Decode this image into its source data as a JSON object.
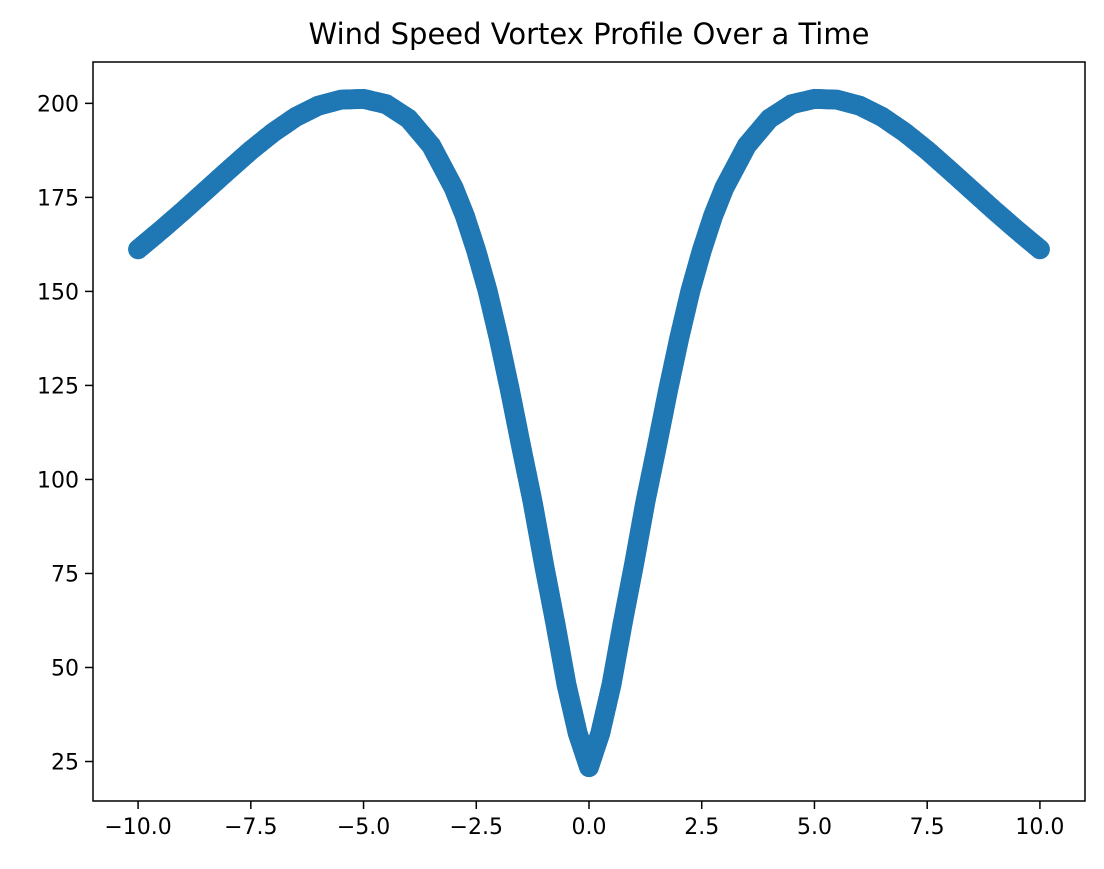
{
  "chart_data": {
    "type": "scatter",
    "title": "Wind Speed Vortex Profile Over a Time",
    "xlabel": "",
    "ylabel": "",
    "xlim": [
      -11.0,
      11.0
    ],
    "ylim": [
      14.5,
      211.0
    ],
    "x_ticks": [
      -10.0,
      -7.5,
      -5.0,
      -2.5,
      0.0,
      2.5,
      5.0,
      7.5,
      10.0
    ],
    "x_tick_labels": [
      "−10.0",
      "−7.5",
      "−5.0",
      "−2.5",
      "0.0",
      "2.5",
      "5.0",
      "7.5",
      "10.0"
    ],
    "y_ticks": [
      25,
      50,
      75,
      100,
      125,
      150,
      175,
      200
    ],
    "y_tick_labels": [
      "25",
      "50",
      "75",
      "100",
      "125",
      "150",
      "175",
      "200"
    ],
    "grid": false,
    "marker_color": "#1f77b4",
    "series": [
      {
        "x": [
          -10.0,
          -9.5,
          -9.0,
          -8.5,
          -8.0,
          -7.5,
          -7.0,
          -6.5,
          -6.0,
          -5.5,
          -5.0,
          -4.5,
          -4.0,
          -3.5,
          -3.0,
          -2.75,
          -2.5,
          -2.25,
          -2.0,
          -1.75,
          -1.5,
          -1.25,
          -1.0,
          -0.75,
          -0.5,
          -0.25,
          0.0,
          0.25,
          0.5,
          0.75,
          1.0,
          1.25,
          1.5,
          1.75,
          2.0,
          2.25,
          2.5,
          2.75,
          3.0,
          3.5,
          4.0,
          4.5,
          5.0,
          5.5,
          6.0,
          6.5,
          7.0,
          7.5,
          8.0,
          8.5,
          9.0,
          9.5,
          10.0
        ],
        "y": [
          161.2,
          166.2,
          171.4,
          176.8,
          182.2,
          187.5,
          192.3,
          196.4,
          199.4,
          201.0,
          201.2,
          199.8,
          195.9,
          188.8,
          177.5,
          170.0,
          160.8,
          150.2,
          137.5,
          123.5,
          108.5,
          94.0,
          77.5,
          62.0,
          45.5,
          32.5,
          23.5,
          32.5,
          45.5,
          62.0,
          77.5,
          94.0,
          108.5,
          123.5,
          137.5,
          150.2,
          160.8,
          170.0,
          177.5,
          188.8,
          195.9,
          199.8,
          201.2,
          201.0,
          199.4,
          196.4,
          192.3,
          187.5,
          182.2,
          176.8,
          171.4,
          166.2,
          161.2
        ]
      }
    ]
  }
}
